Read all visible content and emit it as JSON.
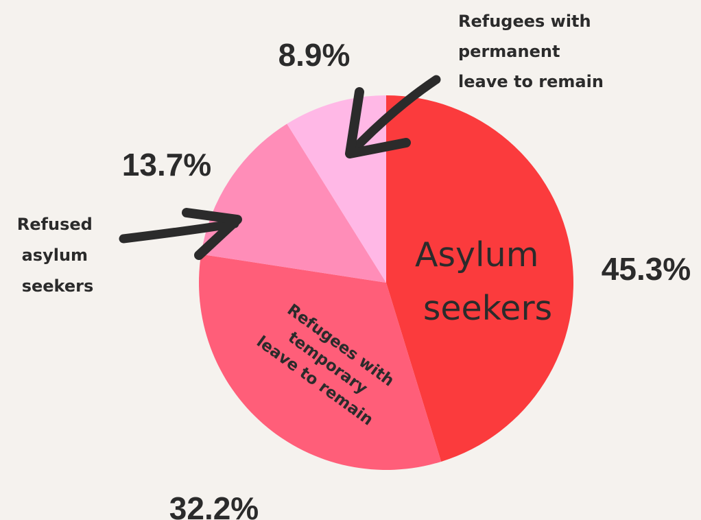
{
  "chart_data": {
    "type": "pie",
    "start_angle_deg": 0,
    "direction": "clockwise",
    "slices": [
      {
        "label_lines": [
          "Asylum",
          "seekers"
        ],
        "value": 45.3,
        "value_label": "45.3%",
        "color": "#fb3b3d"
      },
      {
        "label_lines": [
          "Refugees with",
          "temporary",
          "leave to remain"
        ],
        "value": 32.2,
        "value_label": "32.2%",
        "color": "#ff5e79"
      },
      {
        "label_lines": [
          "Refused",
          "asylum",
          "seekers"
        ],
        "value": 13.7,
        "value_label": "13.7%",
        "color": "#ff8db8"
      },
      {
        "label_lines": [
          "Refugees with",
          "permanent",
          "leave to remain"
        ],
        "value": 8.9,
        "value_label": "8.9%",
        "color": "#ffb8e6"
      }
    ]
  }
}
